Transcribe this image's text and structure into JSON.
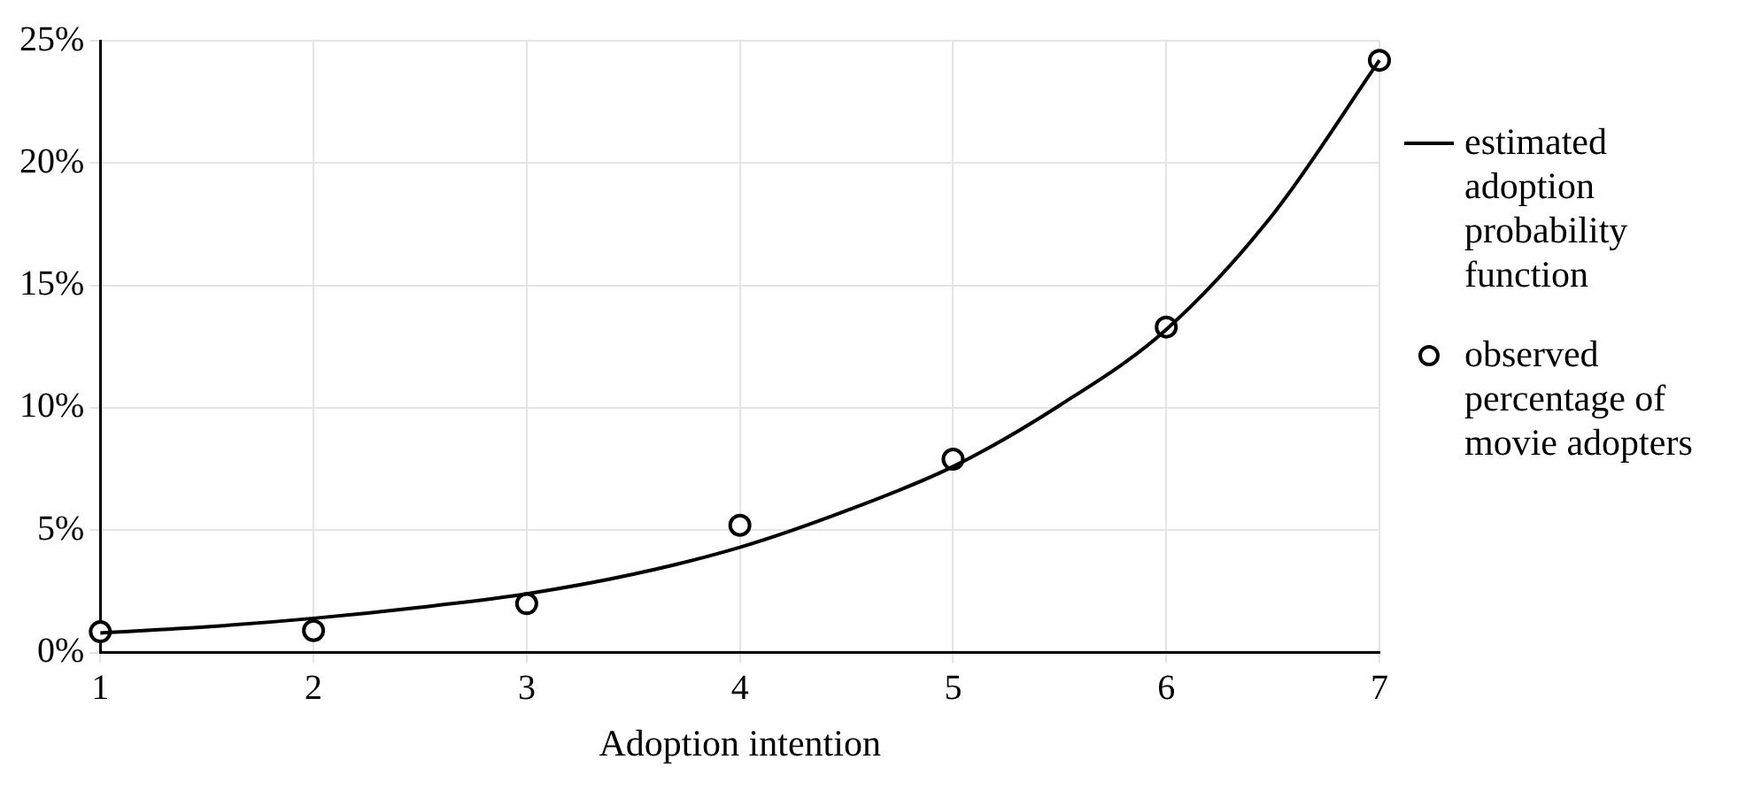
{
  "chart_data": {
    "type": "line",
    "xlabel": "Adoption intention",
    "xlim": [
      1,
      7
    ],
    "xticks": [
      1,
      2,
      3,
      4,
      5,
      6,
      7
    ],
    "ylim": [
      0,
      25
    ],
    "yticks": [
      {
        "value": 0,
        "label": "0%"
      },
      {
        "value": 5,
        "label": "5%"
      },
      {
        "value": 10,
        "label": "10%"
      },
      {
        "value": 15,
        "label": "15%"
      },
      {
        "value": 20,
        "label": "20%"
      },
      {
        "value": 25,
        "label": "25%"
      }
    ],
    "grid": true,
    "legend": "right",
    "series": [
      {
        "name": "estimated adoption probability function",
        "color": "#000000",
        "marker": "none",
        "x": [
          1,
          1.5,
          2,
          2.5,
          3,
          3.5,
          4,
          4.5,
          5,
          5.5,
          6,
          6.5,
          7
        ],
        "values": [
          0.8,
          1.05,
          1.4,
          1.85,
          2.4,
          3.2,
          4.3,
          5.8,
          7.6,
          10.1,
          13.2,
          17.9,
          24.2
        ]
      },
      {
        "name": "observed percentage of movie adopters",
        "type": "scatter",
        "color": "#000000",
        "marker": "circle",
        "x": [
          1,
          2,
          3,
          4,
          5,
          6,
          7
        ],
        "values": [
          0.85,
          0.9,
          2.0,
          5.2,
          7.9,
          13.3,
          24.2
        ]
      }
    ]
  }
}
